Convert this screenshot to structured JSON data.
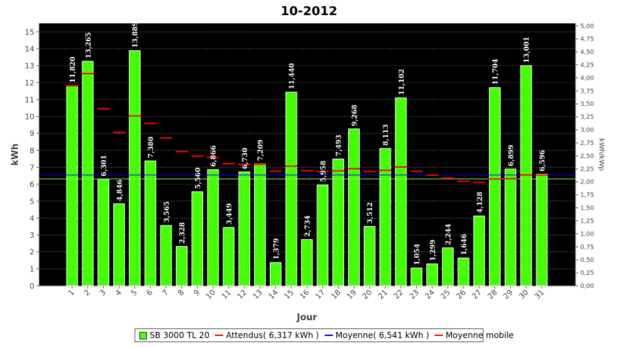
{
  "chart_data": {
    "type": "bar",
    "title": "10-2012",
    "xlabel": "Jour",
    "ylabel": "kWh",
    "y2label": "kWh/kWp",
    "ylim": [
      0,
      15.5
    ],
    "y2lim": [
      0,
      5.05
    ],
    "yticks": [
      "0",
      "1",
      "2",
      "3",
      "4",
      "5",
      "6",
      "7",
      "8",
      "9",
      "10",
      "11",
      "12",
      "13",
      "14",
      "15"
    ],
    "y2ticks": [
      "0,00",
      "0,25",
      "0,50",
      "0,75",
      "1,00",
      "1,25",
      "1,50",
      "1,75",
      "2,00",
      "2,25",
      "2,50",
      "2,75",
      "3,00",
      "3,25",
      "3,50",
      "3,75",
      "4,00",
      "4,25",
      "4,50",
      "4,75",
      "5,00"
    ],
    "categories": [
      "1",
      "2",
      "3",
      "4",
      "5",
      "6",
      "7",
      "8",
      "9",
      "10",
      "11",
      "12",
      "13",
      "14",
      "15",
      "16",
      "17",
      "18",
      "19",
      "20",
      "21",
      "22",
      "23",
      "24",
      "25",
      "26",
      "27",
      "28",
      "29",
      "30",
      "31"
    ],
    "series": [
      {
        "name": "SB 3000 TL 20",
        "values": [
          11.82,
          13.265,
          6.301,
          4.846,
          13.889,
          7.38,
          3.565,
          2.328,
          5.56,
          6.866,
          3.449,
          6.73,
          7.209,
          1.379,
          11.44,
          2.734,
          5.958,
          7.493,
          9.268,
          3.512,
          8.113,
          11.102,
          1.054,
          1.299,
          2.244,
          1.646,
          4.128,
          11.704,
          6.899,
          13.001,
          6.596
        ],
        "labels": [
          "11,820",
          "13,265",
          "6,301",
          "4,846",
          "13,889",
          "7,380",
          "3,565",
          "2,328",
          "5,560",
          "6,866",
          "3,449",
          "6,730",
          "7,209",
          "1,379",
          "11,440",
          "2,734",
          "5,958",
          "7,493",
          "9,268",
          "3,512",
          "8,113",
          "11,102",
          "1,054",
          "1,299",
          "2,244",
          "1,646",
          "4,128",
          "11,704",
          "6,899",
          "13,001",
          "6,596"
        ],
        "color": "#44ff00"
      },
      {
        "name": "Attendus( 6,317 kWh )",
        "value": 6.317,
        "color": "#ff0000"
      },
      {
        "name": "Moyenne( 6,541 kWh )",
        "value": 6.541,
        "color": "#0000ff"
      },
      {
        "name": "Moyenne mobile",
        "values": [
          11.82,
          12.54,
          10.46,
          9.06,
          10.03,
          9.59,
          8.73,
          7.93,
          7.66,
          7.58,
          7.21,
          7.17,
          7.17,
          6.76,
          7.07,
          6.8,
          6.75,
          6.79,
          6.92,
          6.75,
          6.82,
          7.02,
          6.76,
          6.53,
          6.36,
          6.18,
          6.11,
          6.31,
          6.33,
          6.55,
          6.55
        ],
        "color": "#ff0000"
      }
    ],
    "grid": true,
    "background": "#000000",
    "legend_position": "bottom"
  }
}
